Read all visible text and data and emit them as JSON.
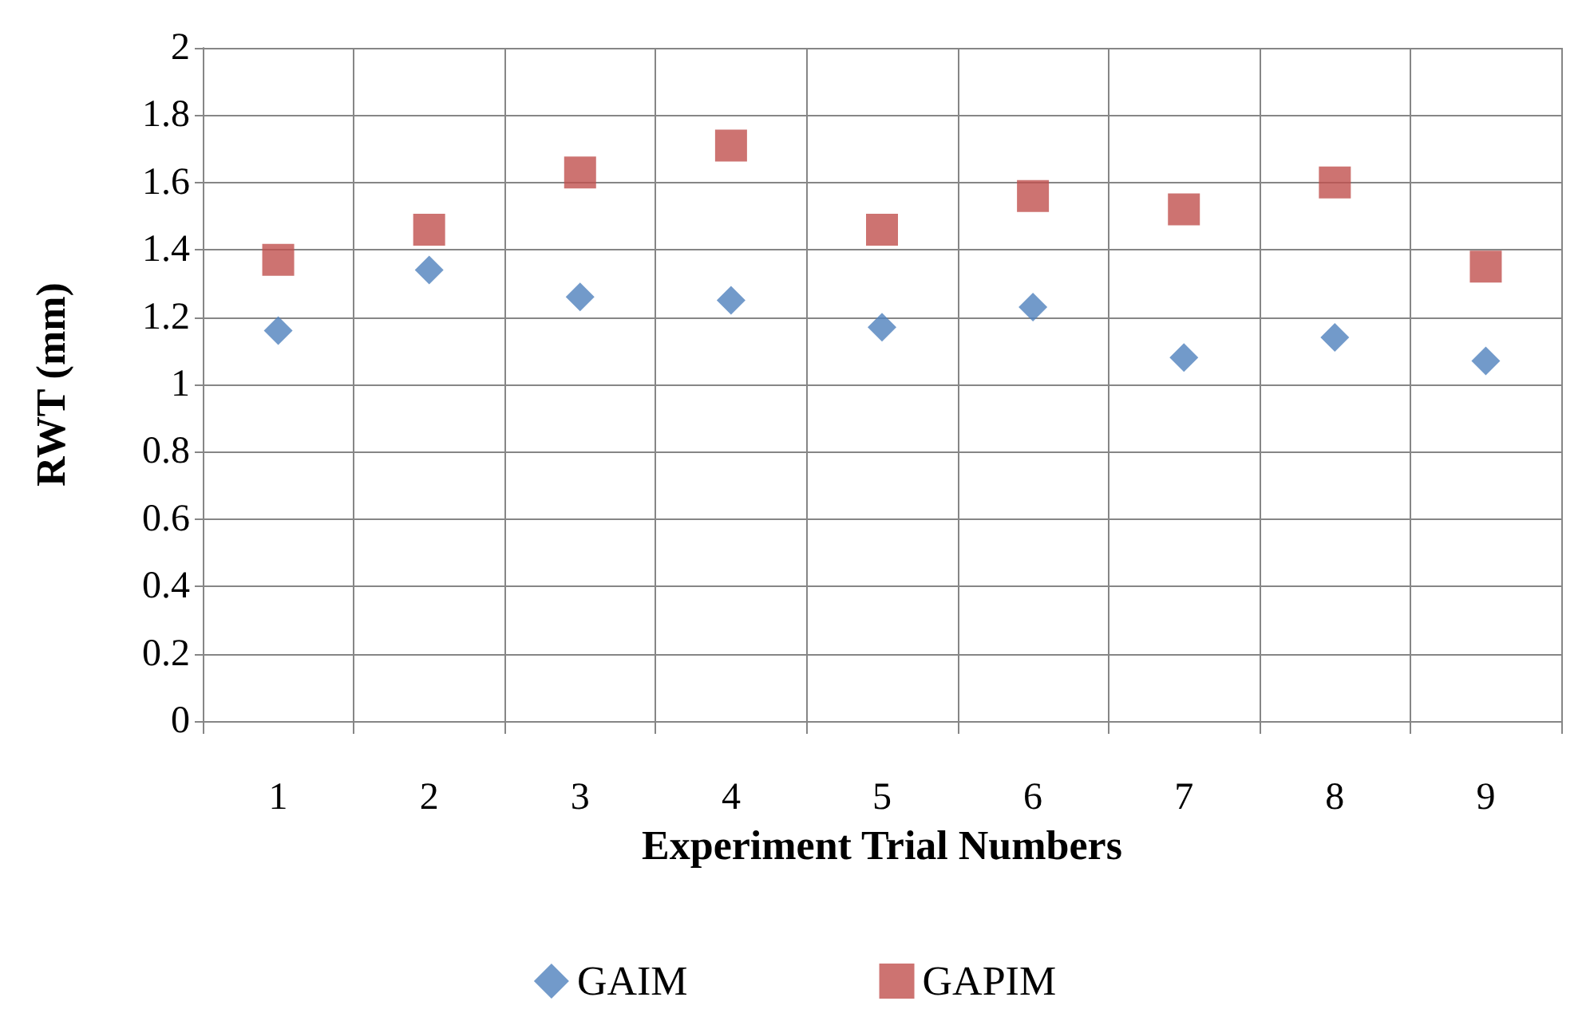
{
  "chart_data": {
    "type": "scatter",
    "xlabel": "Experiment Trial Numbers",
    "ylabel": "RWT (mm)",
    "categories": [
      "1",
      "2",
      "3",
      "4",
      "5",
      "6",
      "7",
      "8",
      "9"
    ],
    "series": [
      {
        "name": "GAIM",
        "color": "#4f81bd",
        "marker": "diamond",
        "values": [
          1.16,
          1.34,
          1.26,
          1.25,
          1.17,
          1.23,
          1.08,
          1.14,
          1.07
        ]
      },
      {
        "name": "GAPIM",
        "color": "#c0504d",
        "marker": "square",
        "values": [
          1.37,
          1.46,
          1.63,
          1.71,
          1.46,
          1.56,
          1.52,
          1.6,
          1.35
        ]
      }
    ],
    "ylim": [
      0,
      2
    ],
    "yticks": [
      0,
      0.2,
      0.4,
      0.6,
      0.8,
      1,
      1.2,
      1.4,
      1.6,
      1.8,
      2
    ],
    "grid": true,
    "legend": "bottom"
  }
}
